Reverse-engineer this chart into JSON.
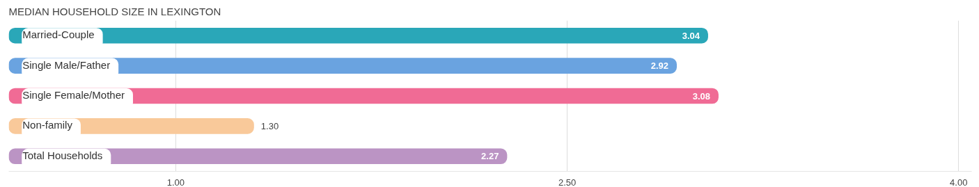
{
  "chart_data": {
    "type": "bar",
    "orientation": "horizontal",
    "title": "MEDIAN HOUSEHOLD SIZE IN LEXINGTON",
    "categories": [
      "Married-Couple",
      "Single Male/Father",
      "Single Female/Mother",
      "Non-family",
      "Total Households"
    ],
    "values": [
      3.04,
      2.92,
      3.08,
      1.3,
      2.27
    ],
    "colors": [
      "#2aa7b8",
      "#6aa3e0",
      "#f06b95",
      "#f9c99a",
      "#bb94c4"
    ],
    "value_labels": [
      "3.04",
      "2.92",
      "3.08",
      "1.30",
      "2.27"
    ],
    "xlim": [
      0.36,
      4.05
    ],
    "xticks": [
      {
        "value": 1,
        "label": "1.00"
      },
      {
        "value": 2.5,
        "label": "2.50"
      },
      {
        "value": 4,
        "label": "4.00"
      }
    ],
    "grid": "x"
  }
}
